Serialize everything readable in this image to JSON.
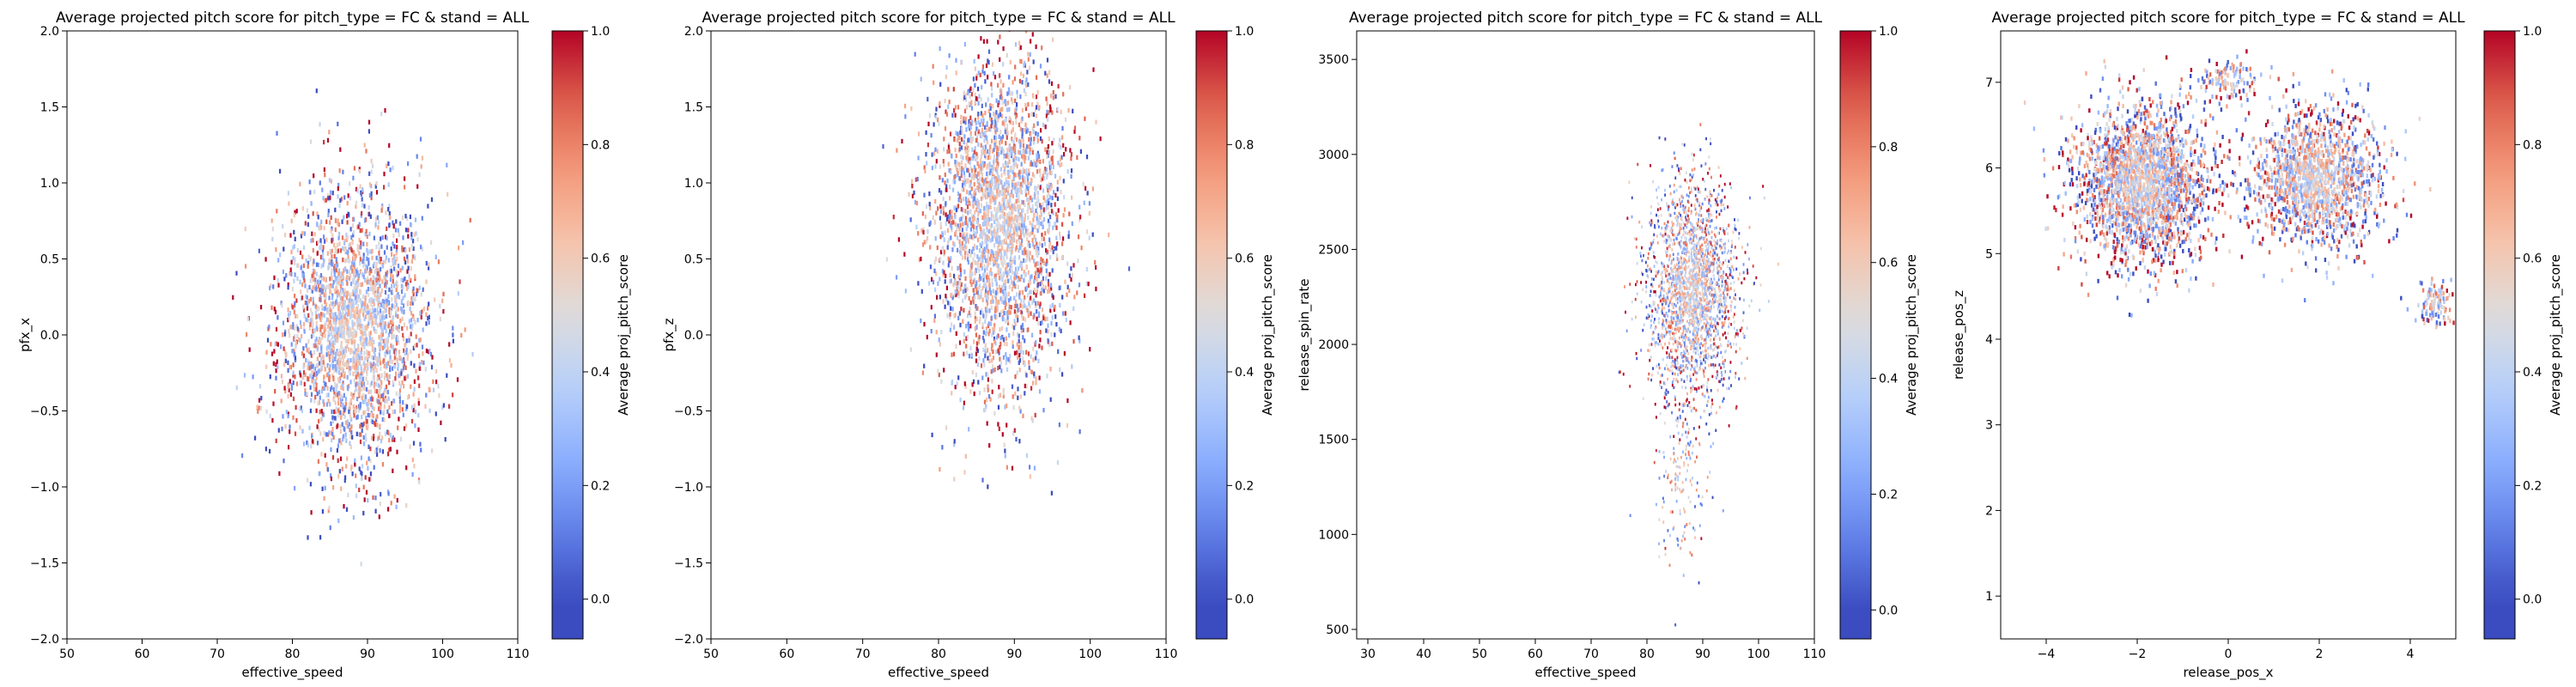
{
  "chart_data": [
    {
      "type": "heatmap",
      "title": "Average projected pitch score for pitch_type = FC & stand = ALL",
      "xlabel": "effective_speed",
      "ylabel": "pfx_x",
      "xlim": [
        50,
        110
      ],
      "ylim": [
        -2.0,
        2.0
      ],
      "xticks": [
        50,
        60,
        70,
        80,
        90,
        100,
        110
      ],
      "yticks": [
        -2.0,
        -1.5,
        -1.0,
        -0.5,
        0.0,
        0.5,
        1.0,
        1.5,
        2.0
      ],
      "x_tick_labels": [
        "50",
        "60",
        "70",
        "80",
        "90",
        "100",
        "110"
      ],
      "y_tick_labels": [
        "−2.0",
        "−1.5",
        "−1.0",
        "−0.5",
        "0.0",
        "0.5",
        "1.0",
        "1.5",
        "2.0"
      ],
      "colorbar": {
        "label": "Average proj_pitch_score",
        "colormap": "coolwarm",
        "range": [
          -0.07,
          1.0
        ],
        "ticks": [
          0.0,
          0.2,
          0.4,
          0.6,
          0.8,
          1.0
        ],
        "tick_labels": [
          "0.0",
          "0.2",
          "0.4",
          "0.6",
          "0.8",
          "1.0"
        ]
      },
      "clusters": [
        {
          "cx": 88,
          "cy": 0.05,
          "sx": 5.0,
          "sy": 0.45,
          "n": 2600,
          "hx": 0.25,
          "hy": 0.03
        }
      ],
      "grid": false
    },
    {
      "type": "heatmap",
      "title": "Average projected pitch score for pitch_type = FC & stand = ALL",
      "xlabel": "effective_speed",
      "ylabel": "pfx_z",
      "xlim": [
        50,
        110
      ],
      "ylim": [
        -2.0,
        2.0
      ],
      "xticks": [
        50,
        60,
        70,
        80,
        90,
        100,
        110
      ],
      "yticks": [
        -2.0,
        -1.5,
        -1.0,
        -0.5,
        0.0,
        0.5,
        1.0,
        1.5,
        2.0
      ],
      "x_tick_labels": [
        "50",
        "60",
        "70",
        "80",
        "90",
        "100",
        "110"
      ],
      "y_tick_labels": [
        "−2.0",
        "−1.5",
        "−1.0",
        "−0.5",
        "0.0",
        "0.5",
        "1.0",
        "1.5",
        "2.0"
      ],
      "colorbar": {
        "label": "Average proj_pitch_score",
        "colormap": "coolwarm",
        "range": [
          -0.07,
          1.0
        ],
        "ticks": [
          0.0,
          0.2,
          0.4,
          0.6,
          0.8,
          1.0
        ],
        "tick_labels": [
          "0.0",
          "0.2",
          "0.4",
          "0.6",
          "0.8",
          "1.0"
        ]
      },
      "clusters": [
        {
          "cx": 88,
          "cy": 0.75,
          "sx": 4.5,
          "sy": 0.55,
          "n": 2800,
          "hx": 0.25,
          "hy": 0.03
        }
      ],
      "grid": false
    },
    {
      "type": "heatmap",
      "title": "Average projected pitch score for pitch_type = FC & stand = ALL",
      "xlabel": "effective_speed",
      "ylabel": "release_spin_rate",
      "xlim": [
        28,
        110
      ],
      "ylim": [
        450,
        3650
      ],
      "xticks": [
        30,
        40,
        50,
        60,
        70,
        80,
        90,
        100,
        110
      ],
      "yticks": [
        500,
        1000,
        1500,
        2000,
        2500,
        3000,
        3500
      ],
      "x_tick_labels": [
        "30",
        "40",
        "50",
        "60",
        "70",
        "80",
        "90",
        "100",
        "110"
      ],
      "y_tick_labels": [
        "500",
        "1000",
        "1500",
        "2000",
        "2500",
        "3000",
        "3500"
      ],
      "colorbar": {
        "label": "Average proj_pitch_score",
        "colormap": "coolwarm",
        "range": [
          -0.05,
          1.0
        ],
        "ticks": [
          0.0,
          0.2,
          0.4,
          0.6,
          0.8,
          1.0
        ],
        "tick_labels": [
          "0.0",
          "0.2",
          "0.4",
          "0.6",
          "0.8",
          "1.0"
        ]
      },
      "clusters": [
        {
          "cx": 88,
          "cy": 2300,
          "sx": 4.0,
          "sy": 280,
          "n": 2200,
          "hx": 0.3,
          "hy": 14
        },
        {
          "cx": 86,
          "cy": 1300,
          "sx": 2.5,
          "sy": 250,
          "n": 160,
          "hx": 0.3,
          "hy": 14
        }
      ],
      "grid": false
    },
    {
      "type": "heatmap",
      "title": "Average projected pitch score for pitch_type = FC & stand = ALL",
      "xlabel": "release_pos_x",
      "ylabel": "release_pos_z",
      "xlim": [
        -5,
        5
      ],
      "ylim": [
        0.5,
        7.6
      ],
      "xticks": [
        -4,
        -2,
        0,
        2,
        4
      ],
      "yticks": [
        1,
        2,
        3,
        4,
        5,
        6,
        7
      ],
      "x_tick_labels": [
        "−4",
        "−2",
        "0",
        "2",
        "4"
      ],
      "y_tick_labels": [
        "1",
        "2",
        "3",
        "4",
        "5",
        "6",
        "7"
      ],
      "colorbar": {
        "label": "Average proj_pitch_score",
        "colormap": "coolwarm",
        "range": [
          -0.07,
          1.0
        ],
        "ticks": [
          0.0,
          0.2,
          0.4,
          0.6,
          0.8,
          1.0
        ],
        "tick_labels": [
          "0.0",
          "0.2",
          "0.4",
          "0.6",
          "0.8",
          "1.0"
        ]
      },
      "clusters": [
        {
          "cx": -1.9,
          "cy": 5.85,
          "sx": 0.75,
          "sy": 0.45,
          "n": 2300,
          "hx": 0.045,
          "hy": 0.05
        },
        {
          "cx": 1.9,
          "cy": 5.9,
          "sx": 0.75,
          "sy": 0.4,
          "n": 1500,
          "hx": 0.045,
          "hy": 0.05
        },
        {
          "cx": 4.5,
          "cy": 4.45,
          "sx": 0.2,
          "sy": 0.15,
          "n": 110,
          "hx": 0.045,
          "hy": 0.05
        },
        {
          "cx": 0.0,
          "cy": 7.05,
          "sx": 0.35,
          "sy": 0.12,
          "n": 120,
          "hx": 0.045,
          "hy": 0.05
        }
      ],
      "grid": false
    }
  ]
}
